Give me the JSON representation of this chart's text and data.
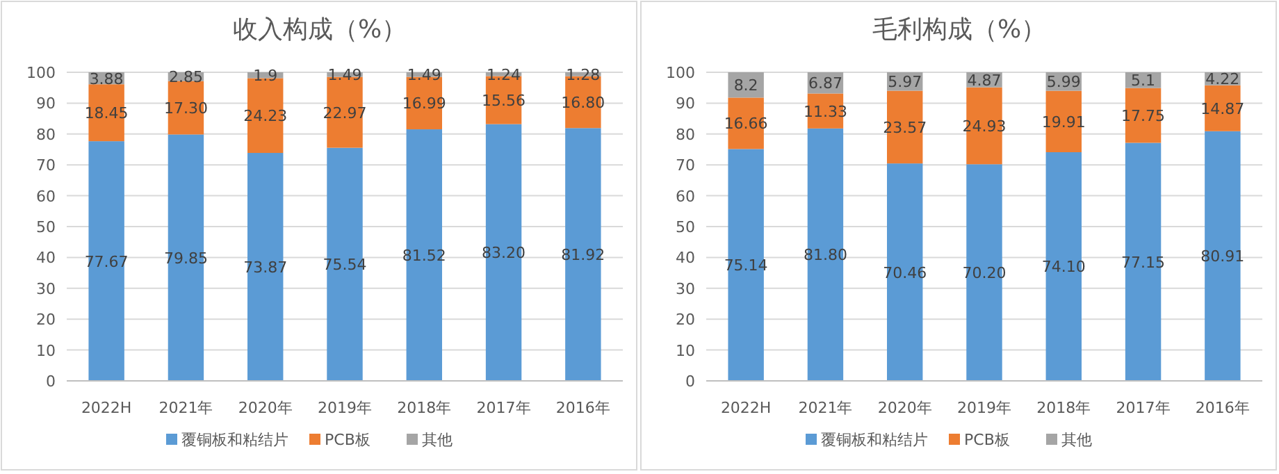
{
  "chart_data": [
    {
      "type": "bar",
      "stacked": true,
      "title": "收入构成（%）",
      "categories": [
        "2022H",
        "2021年",
        "2020年",
        "2019年",
        "2018年",
        "2017年",
        "2016年"
      ],
      "ylim": [
        0,
        100
      ],
      "yticks": [
        0,
        10,
        20,
        30,
        40,
        50,
        60,
        70,
        80,
        90,
        100
      ],
      "grid": "y",
      "legend": "bottom",
      "series": [
        {
          "name": "覆铜板和粘结片",
          "color": "#5b9bd5",
          "values": [
            77.67,
            79.85,
            73.87,
            75.54,
            81.52,
            83.2,
            81.92
          ],
          "value_labels": [
            "77.67",
            "79.85",
            "73.87",
            "75.54",
            "81.52",
            "83.20",
            "81.92"
          ]
        },
        {
          "name": "PCB板",
          "color": "#ed7d31",
          "values": [
            18.45,
            17.3,
            24.23,
            22.97,
            16.99,
            15.56,
            16.8
          ],
          "value_labels": [
            "18.45",
            "17.30",
            "24.23",
            "22.97",
            "16.99",
            "15.56",
            "16.80"
          ]
        },
        {
          "name": "其他",
          "color": "#a5a5a5",
          "values": [
            3.88,
            2.85,
            1.9,
            1.49,
            1.49,
            1.24,
            1.28
          ],
          "value_labels": [
            "3.88",
            "2.85",
            "1.9",
            "1.49",
            "1.49",
            "1.24",
            "1.28"
          ]
        }
      ]
    },
    {
      "type": "bar",
      "stacked": true,
      "title": "毛利构成（%）",
      "categories": [
        "2022H",
        "2021年",
        "2020年",
        "2019年",
        "2018年",
        "2017年",
        "2016年"
      ],
      "ylim": [
        0,
        100
      ],
      "yticks": [
        0,
        10,
        20,
        30,
        40,
        50,
        60,
        70,
        80,
        90,
        100
      ],
      "grid": "y",
      "legend": "bottom",
      "series": [
        {
          "name": "覆铜板和粘结片",
          "color": "#5b9bd5",
          "values": [
            75.14,
            81.8,
            70.46,
            70.2,
            74.1,
            77.15,
            80.91
          ],
          "value_labels": [
            "75.14",
            "81.80",
            "70.46",
            "70.20",
            "74.10",
            "77.15",
            "80.91"
          ]
        },
        {
          "name": "PCB板",
          "color": "#ed7d31",
          "values": [
            16.66,
            11.33,
            23.57,
            24.93,
            19.91,
            17.75,
            14.87
          ],
          "value_labels": [
            "16.66",
            "11.33",
            "23.57",
            "24.93",
            "19.91",
            "17.75",
            "14.87"
          ]
        },
        {
          "name": "其他",
          "color": "#a5a5a5",
          "values": [
            8.2,
            6.87,
            5.97,
            4.87,
            5.99,
            5.1,
            4.22
          ],
          "value_labels": [
            "8.2",
            "6.87",
            "5.97",
            "4.87",
            "5.99",
            "5.1",
            "4.22"
          ]
        }
      ]
    }
  ]
}
